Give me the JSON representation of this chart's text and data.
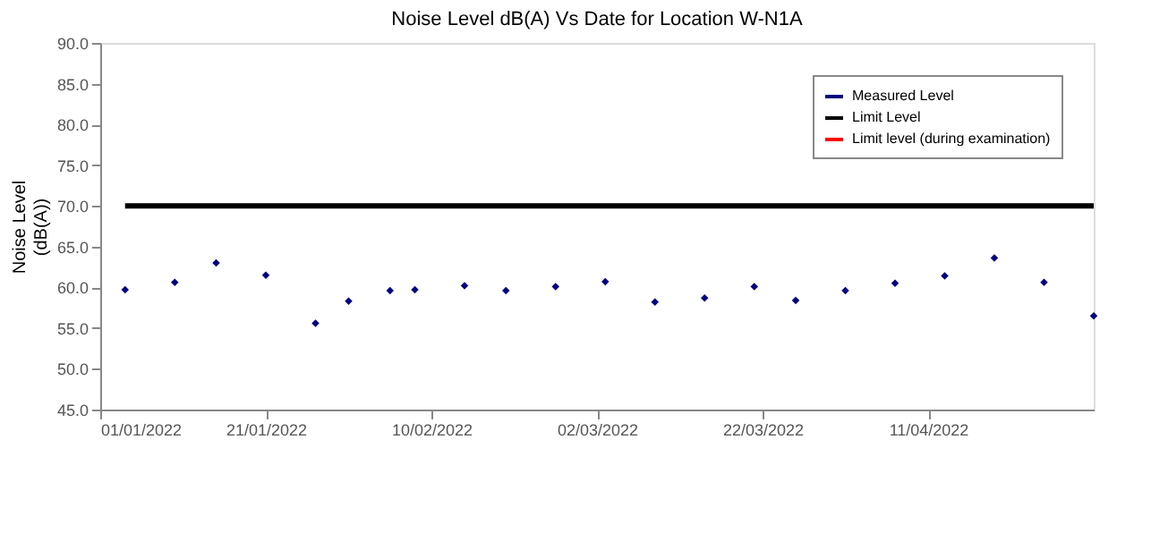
{
  "chart_data": {
    "type": "scatter",
    "title": "Noise Level dB(A) Vs Date for Location W-N1A",
    "ylabel": "Noise Level\n(dB(A))",
    "x": [
      "2022-01-04",
      "2022-01-10",
      "2022-01-15",
      "2022-01-21",
      "2022-01-27",
      "2022-01-31",
      "2022-02-05",
      "2022-02-08",
      "2022-02-14",
      "2022-02-19",
      "2022-02-25",
      "2022-03-03",
      "2022-03-09",
      "2022-03-15",
      "2022-03-21",
      "2022-03-26",
      "2022-04-01",
      "2022-04-07",
      "2022-04-13",
      "2022-04-19",
      "2022-04-25",
      "2022-05-01"
    ],
    "series": [
      {
        "name": "Measured Level",
        "marker": "diamond",
        "color": "#000080",
        "values": [
          59.7,
          60.6,
          63.0,
          61.5,
          55.6,
          58.3,
          59.6,
          59.7,
          60.2,
          59.6,
          60.1,
          60.7,
          58.2,
          58.7,
          60.1,
          58.4,
          59.6,
          60.5,
          61.4,
          63.6,
          60.6,
          56.5
        ]
      },
      {
        "name": "Limit Level",
        "type": "line",
        "marker": "none",
        "color": "#000000",
        "x": [
          "2022-01-04",
          "2022-05-01"
        ],
        "values": [
          70,
          70
        ]
      },
      {
        "name": "Limit level (during examination)",
        "type": "line",
        "marker": "none",
        "color": "#ff0000",
        "values": [
          null,
          null,
          null,
          null,
          null,
          null,
          null,
          null,
          null,
          null,
          null,
          null,
          null,
          null,
          null,
          null,
          null,
          null,
          null,
          null,
          null,
          null
        ]
      }
    ],
    "xlim": [
      "2022-01-01",
      "2022-05-01"
    ],
    "xticks": [
      {
        "value": "2022-01-01",
        "label": "01/01/2022"
      },
      {
        "value": "2022-01-21",
        "label": "21/01/2022"
      },
      {
        "value": "2022-02-10",
        "label": "10/02/2022"
      },
      {
        "value": "2022-03-02",
        "label": "02/03/2022"
      },
      {
        "value": "2022-03-22",
        "label": "22/03/2022"
      },
      {
        "value": "2022-04-11",
        "label": "11/04/2022"
      }
    ],
    "ylim": [
      45,
      90
    ],
    "yticks": [
      {
        "value": 45,
        "label": "45.0"
      },
      {
        "value": 50,
        "label": "50.0"
      },
      {
        "value": 55,
        "label": "55.0"
      },
      {
        "value": 60,
        "label": "60.0"
      },
      {
        "value": 65,
        "label": "65.0"
      },
      {
        "value": 70,
        "label": "70.0"
      },
      {
        "value": 75,
        "label": "75.0"
      },
      {
        "value": 80,
        "label": "80.0"
      },
      {
        "value": 85,
        "label": "85.0"
      },
      {
        "value": 90,
        "label": "90.0"
      }
    ],
    "grid": false,
    "legend": "top right",
    "line_style": "solid"
  }
}
